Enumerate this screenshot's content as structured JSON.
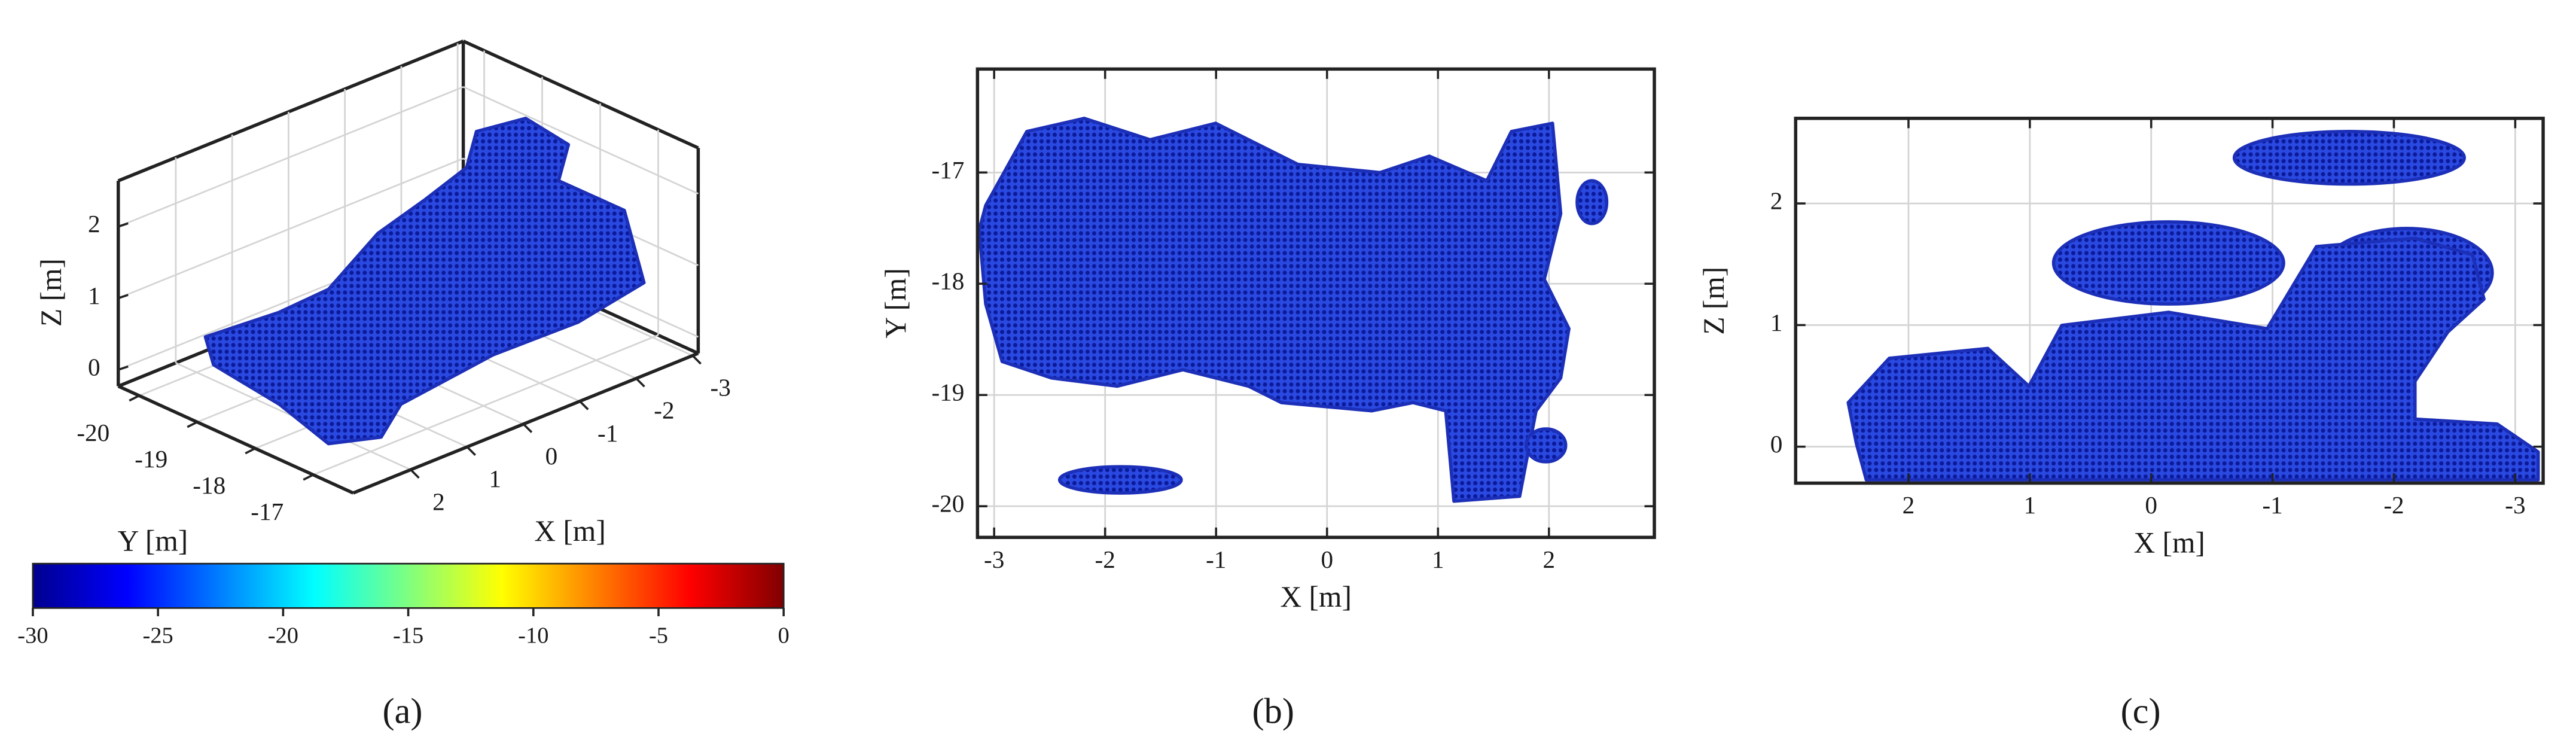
{
  "chart_data": [
    {
      "type": "scatter3d",
      "caption": "(a)",
      "xlabel": "X [m]",
      "ylabel": "Y [m]",
      "zlabel": "Z [m]",
      "xlim": [
        3.02,
        -3.1
      ],
      "ylim": [
        -20.36,
        -16.31
      ],
      "zlim": [
        -0.23,
        2.64
      ],
      "xticks": [
        2,
        1,
        0,
        -1,
        -2,
        -3
      ],
      "yticks": [
        -20,
        -19,
        -18,
        -17
      ],
      "zticks": [
        0,
        1,
        2
      ],
      "grid": true,
      "colorbar": {
        "lim": [
          -30,
          0
        ],
        "ticks": [
          -30,
          -25,
          -20,
          -15,
          -10,
          -5,
          0
        ]
      }
    },
    {
      "type": "scatter",
      "caption": "(b)",
      "xlabel": "X [m]",
      "ylabel": "Y [m]",
      "xlim": [
        -3.15,
        2.95
      ],
      "ylim": [
        -20.28,
        -16.07
      ],
      "xticks": [
        -3,
        -2,
        -1,
        0,
        1,
        2
      ],
      "yticks": [
        -20,
        -19,
        -18,
        -17
      ],
      "grid": true
    },
    {
      "type": "scatter",
      "caption": "(c)",
      "xlabel": "X [m]",
      "ylabel": "Z [m]",
      "xlim": [
        2.93,
        -3.23
      ],
      "ylim": [
        -0.3,
        2.7
      ],
      "xticks": [
        2,
        1,
        0,
        -1,
        -2,
        -3
      ],
      "yticks": [
        0,
        1,
        2
      ],
      "grid": true
    }
  ]
}
